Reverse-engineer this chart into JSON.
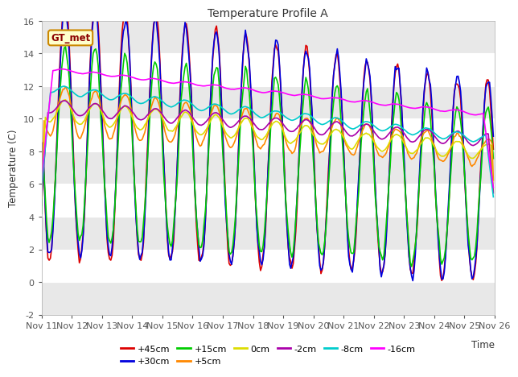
{
  "title": "Temperature Profile A",
  "xlabel": "Time",
  "ylabel": "Temperature (C)",
  "ylim": [
    -2,
    16
  ],
  "background_color": "#ffffff",
  "plot_bg_color": "#ffffff",
  "annotation_text": "GT_met",
  "annotation_bg": "#ffffcc",
  "annotation_border": "#cc8800",
  "xtick_labels": [
    "Nov 11",
    "Nov 12",
    "Nov 13",
    "Nov 14",
    "Nov 15",
    "Nov 16",
    "Nov 17",
    "Nov 18",
    "Nov 19",
    "Nov 20",
    "Nov 21",
    "Nov 22",
    "Nov 23",
    "Nov 24",
    "Nov 25",
    "Nov 26"
  ],
  "ytick_values": [
    -2,
    0,
    2,
    4,
    6,
    8,
    10,
    12,
    14,
    16
  ],
  "series": [
    {
      "label": "+45cm",
      "color": "#dd0000",
      "lw": 1.2
    },
    {
      "label": "+30cm",
      "color": "#0000dd",
      "lw": 1.2
    },
    {
      "label": "+15cm",
      "color": "#00cc00",
      "lw": 1.2
    },
    {
      "label": "+5cm",
      "color": "#ff8800",
      "lw": 1.2
    },
    {
      "label": "0cm",
      "color": "#dddd00",
      "lw": 1.2
    },
    {
      "label": "-2cm",
      "color": "#aa00aa",
      "lw": 1.2
    },
    {
      "label": "-8cm",
      "color": "#00cccc",
      "lw": 1.2
    },
    {
      "label": "-16cm",
      "color": "#ff00ff",
      "lw": 1.2
    }
  ],
  "band_color": "#e8e8e8",
  "legend_ncol": 6,
  "legend_loc": "lower center"
}
